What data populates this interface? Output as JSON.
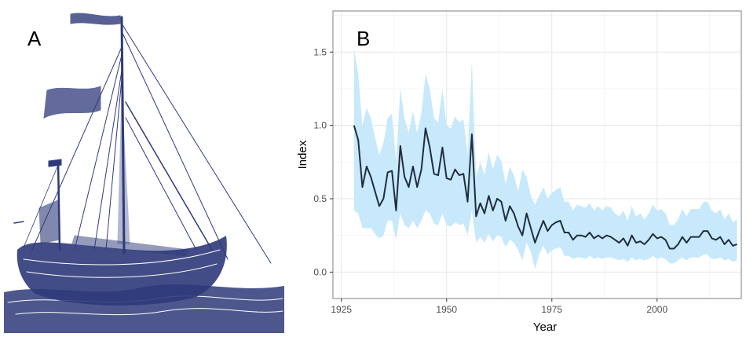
{
  "panel_a": {
    "label": "A",
    "illustration": "engraving of a sailing ship with flags"
  },
  "panel_b": {
    "label": "B"
  },
  "colors": {
    "line": "#1f2d3d",
    "ribbon": "#c8e9fb",
    "grid": "#e6e6e6",
    "frame": "#7f7f7f",
    "engraving": "#2e3a7a"
  },
  "chart_data": {
    "type": "line",
    "title": "",
    "xlabel": "Year",
    "ylabel": "Index",
    "xlim": [
      1923,
      2020
    ],
    "ylim": [
      -0.18,
      1.78
    ],
    "xticks": [
      1925,
      1950,
      1975,
      2000
    ],
    "yticks": [
      0.0,
      0.5,
      1.0,
      1.5
    ],
    "xtick_labels": [
      "1925",
      "1950",
      "1975",
      "2000"
    ],
    "ytick_labels": [
      "0.0",
      "0.5",
      "1.0",
      "1.5"
    ],
    "grid": true,
    "legend": "none",
    "series": [
      {
        "x": [
          1928,
          1929,
          1930,
          1931,
          1932,
          1933,
          1934,
          1935,
          1936,
          1937,
          1938,
          1939,
          1940,
          1941,
          1942,
          1943,
          1944,
          1945,
          1946,
          1947,
          1948,
          1949,
          1950,
          1951,
          1952,
          1953,
          1954,
          1955,
          1956,
          1957,
          1958,
          1959,
          1960,
          1961,
          1962,
          1963,
          1964,
          1965,
          1966,
          1967,
          1968,
          1969,
          1970,
          1971,
          1972,
          1973,
          1974,
          1975,
          1976,
          1977,
          1978,
          1979,
          1980,
          1981,
          1982,
          1983,
          1984,
          1985,
          1986,
          1987,
          1988,
          1989,
          1990,
          1991,
          1992,
          1993,
          1994,
          1995,
          1996,
          1997,
          1998,
          1999,
          2000,
          2001,
          2002,
          2003,
          2004,
          2005,
          2006,
          2007,
          2008,
          2009,
          2010,
          2011,
          2012,
          2013,
          2014,
          2015,
          2016,
          2017,
          2018,
          2019
        ],
        "y": [
          1.0,
          0.9,
          0.58,
          0.72,
          0.65,
          0.55,
          0.45,
          0.5,
          0.68,
          0.69,
          0.42,
          0.86,
          0.65,
          0.58,
          0.72,
          0.58,
          0.7,
          0.98,
          0.85,
          0.67,
          0.66,
          0.85,
          0.64,
          0.63,
          0.7,
          0.66,
          0.67,
          0.48,
          0.94,
          0.38,
          0.47,
          0.4,
          0.52,
          0.42,
          0.5,
          0.48,
          0.35,
          0.45,
          0.4,
          0.31,
          0.25,
          0.4,
          0.3,
          0.2,
          0.28,
          0.35,
          0.28,
          0.32,
          0.34,
          0.35,
          0.27,
          0.27,
          0.22,
          0.25,
          0.25,
          0.24,
          0.27,
          0.23,
          0.25,
          0.23,
          0.25,
          0.24,
          0.22,
          0.2,
          0.23,
          0.18,
          0.25,
          0.2,
          0.21,
          0.19,
          0.22,
          0.26,
          0.23,
          0.24,
          0.22,
          0.16,
          0.16,
          0.19,
          0.24,
          0.2,
          0.24,
          0.24,
          0.24,
          0.28,
          0.28,
          0.23,
          0.22,
          0.24,
          0.19,
          0.22,
          0.18,
          0.19
        ],
        "lower": [
          0.42,
          0.4,
          0.3,
          0.3,
          0.3,
          0.26,
          0.23,
          0.25,
          0.35,
          0.35,
          0.22,
          0.4,
          0.32,
          0.3,
          0.35,
          0.3,
          0.35,
          0.42,
          0.4,
          0.33,
          0.32,
          0.4,
          0.32,
          0.31,
          0.34,
          0.32,
          0.33,
          0.25,
          0.42,
          0.2,
          0.24,
          0.2,
          0.26,
          0.21,
          0.25,
          0.24,
          0.17,
          0.22,
          0.2,
          0.15,
          0.08,
          0.2,
          0.14,
          0.02,
          0.12,
          0.18,
          0.12,
          0.15,
          0.16,
          0.17,
          0.11,
          0.11,
          0.09,
          0.1,
          0.1,
          0.09,
          0.11,
          0.09,
          0.1,
          0.09,
          0.1,
          0.1,
          0.09,
          0.08,
          0.09,
          0.07,
          0.1,
          0.08,
          0.09,
          0.08,
          0.09,
          0.11,
          0.09,
          0.1,
          0.09,
          0.06,
          0.06,
          0.08,
          0.1,
          0.08,
          0.1,
          0.1,
          0.1,
          0.12,
          0.12,
          0.09,
          0.09,
          0.1,
          0.08,
          0.09,
          0.07,
          0.08
        ],
        "upper": [
          1.52,
          1.35,
          1.0,
          1.12,
          1.05,
          0.92,
          0.8,
          0.88,
          1.05,
          1.08,
          0.75,
          1.25,
          1.05,
          0.95,
          1.1,
          0.95,
          1.08,
          1.35,
          1.25,
          1.05,
          1.02,
          1.25,
          1.0,
          0.98,
          1.06,
          1.02,
          1.04,
          0.8,
          1.44,
          0.65,
          0.75,
          0.66,
          0.82,
          0.7,
          0.8,
          0.76,
          0.6,
          0.72,
          0.66,
          0.55,
          0.7,
          0.65,
          0.52,
          0.46,
          0.52,
          0.58,
          0.5,
          0.54,
          0.56,
          0.58,
          0.48,
          0.48,
          0.42,
          0.46,
          0.45,
          0.44,
          0.47,
          0.42,
          0.45,
          0.42,
          0.45,
          0.44,
          0.4,
          0.38,
          0.42,
          0.35,
          0.45,
          0.38,
          0.4,
          0.36,
          0.4,
          0.46,
          0.42,
          0.43,
          0.4,
          0.32,
          0.32,
          0.36,
          0.43,
          0.38,
          0.43,
          0.43,
          0.43,
          0.48,
          0.48,
          0.42,
          0.4,
          0.43,
          0.36,
          0.4,
          0.34,
          0.36
        ]
      }
    ]
  }
}
